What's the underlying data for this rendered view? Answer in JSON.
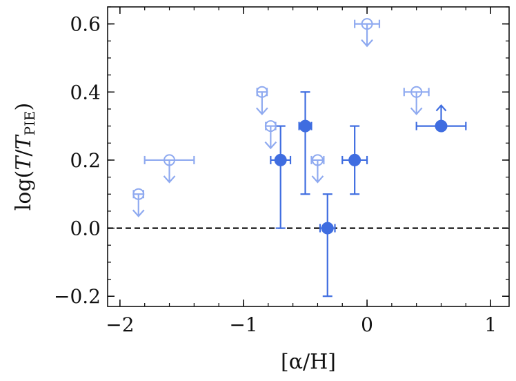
{
  "chart_data": {
    "type": "scatter",
    "xlabel": "[α/H]",
    "ylabel": "log(T/T_PIE)",
    "ylabel_parts": {
      "prefix": "log(",
      "t1": "T",
      "slash": "/",
      "t2": "T",
      "sub": "PIE",
      "suffix": ")"
    },
    "xlim": [
      -2.1,
      1.15
    ],
    "ylim": [
      -0.23,
      0.65
    ],
    "x_ticks": [
      -2,
      -1,
      0,
      1
    ],
    "x_tick_labels": [
      "−2",
      "−1",
      "0",
      "1"
    ],
    "y_ticks": [
      -0.2,
      0.0,
      0.2,
      0.4,
      0.6
    ],
    "y_tick_labels": [
      "−0.2",
      "0.0",
      "0.2",
      "0.4",
      "0.6"
    ],
    "reference_line": {
      "y": 0.0,
      "style": "dashed",
      "color": "#000000"
    },
    "grid": false,
    "colors": {
      "measured": "#3f6de0",
      "upper_limit": "#8faaf0"
    },
    "series": [
      {
        "kind": "measured",
        "marker": "filled-circle",
        "points": [
          {
            "x": -0.7,
            "y": 0.2,
            "xerr": 0.08,
            "yerr": [
              0.2,
              0.1
            ]
          },
          {
            "x": -0.5,
            "y": 0.3,
            "xerr": 0.05,
            "yerr": [
              0.2,
              0.1
            ]
          },
          {
            "x": -0.32,
            "y": 0.0,
            "xerr": 0.06,
            "yerr": [
              0.2,
              0.1
            ]
          },
          {
            "x": -0.1,
            "y": 0.2,
            "xerr": 0.1,
            "yerr": [
              0.1,
              0.1
            ]
          },
          {
            "x": 0.6,
            "y": 0.3,
            "xerr": 0.2,
            "yerr": [
              0,
              0
            ],
            "lower_limit": true
          }
        ]
      },
      {
        "kind": "upper_limit",
        "marker": "open-circle",
        "points": [
          {
            "x": -1.85,
            "y": 0.1,
            "xerr": 0.04
          },
          {
            "x": -1.6,
            "y": 0.2,
            "xerr": 0.2
          },
          {
            "x": -0.85,
            "y": 0.4,
            "xerr": 0.04
          },
          {
            "x": -0.78,
            "y": 0.3,
            "xerr": 0.04
          },
          {
            "x": -0.4,
            "y": 0.2,
            "xerr": 0.05
          },
          {
            "x": 0.0,
            "y": 0.6,
            "xerr": 0.1
          },
          {
            "x": 0.4,
            "y": 0.4,
            "xerr": 0.1
          }
        ]
      }
    ]
  }
}
